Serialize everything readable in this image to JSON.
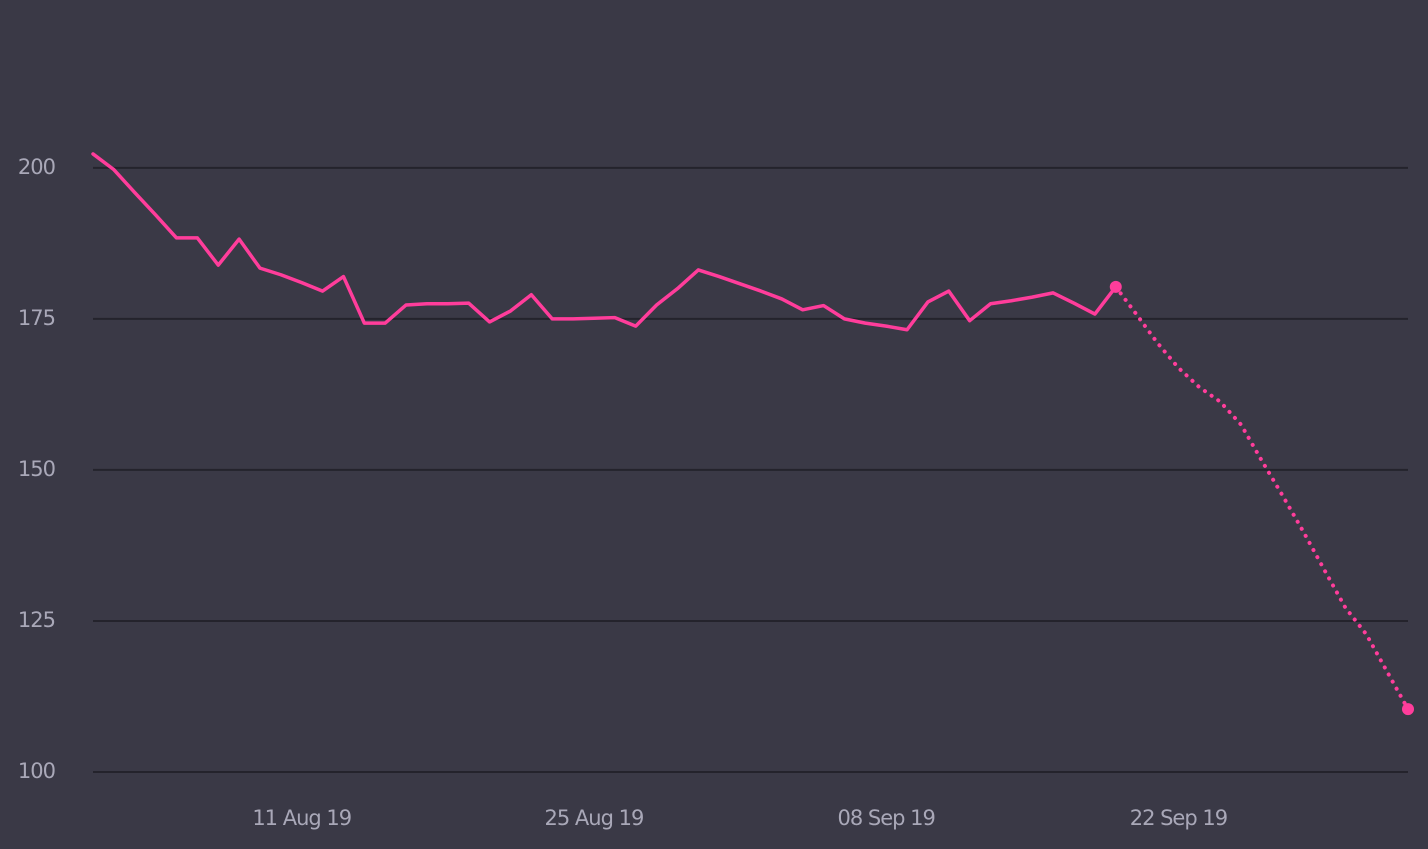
{
  "chart_data": {
    "type": "line",
    "x": [
      "2019-08-01",
      "2019-08-02",
      "2019-08-03",
      "2019-08-04",
      "2019-08-05",
      "2019-08-06",
      "2019-08-07",
      "2019-08-08",
      "2019-08-09",
      "2019-08-10",
      "2019-08-11",
      "2019-08-12",
      "2019-08-13",
      "2019-08-14",
      "2019-08-15",
      "2019-08-16",
      "2019-08-17",
      "2019-08-18",
      "2019-08-19",
      "2019-08-20",
      "2019-08-21",
      "2019-08-22",
      "2019-08-23",
      "2019-08-24",
      "2019-08-25",
      "2019-08-26",
      "2019-08-27",
      "2019-08-28",
      "2019-08-29",
      "2019-08-30",
      "2019-08-31",
      "2019-09-01",
      "2019-09-02",
      "2019-09-03",
      "2019-09-04",
      "2019-09-05",
      "2019-09-06",
      "2019-09-07",
      "2019-09-08",
      "2019-09-09",
      "2019-09-10",
      "2019-09-11",
      "2019-09-12",
      "2019-09-13",
      "2019-09-14",
      "2019-09-15",
      "2019-09-16",
      "2019-09-17",
      "2019-09-18",
      "2019-09-19",
      "2019-09-20",
      "2019-09-21",
      "2019-09-22",
      "2019-09-23",
      "2019-09-24",
      "2019-09-25",
      "2019-09-26",
      "2019-09-27",
      "2019-09-28",
      "2019-09-29",
      "2019-09-30",
      "2019-10-01",
      "2019-10-02",
      "2019-10-03"
    ],
    "series": [
      {
        "color": "#ff3d9b",
        "dotted": false,
        "end_markers": false,
        "values": [
          202.3,
          199.7,
          195.9,
          192.2,
          188.4,
          188.4,
          183.9,
          188.2,
          183.4,
          182.3,
          181.0,
          179.6,
          182.0,
          174.3,
          174.3,
          177.3,
          177.5,
          177.5,
          177.6,
          174.5,
          176.3,
          179.0,
          175.0,
          175.0,
          175.1,
          175.2,
          173.8,
          177.3,
          180.0,
          183.1,
          182.0,
          180.8,
          179.6,
          178.3,
          176.5,
          177.2,
          175.0,
          174.3,
          173.8,
          173.2,
          177.8,
          179.6,
          174.7,
          177.5,
          178.0,
          178.6,
          179.3,
          177.6,
          175.8,
          180.3,
          null,
          null,
          null,
          null,
          null,
          null,
          null,
          null,
          null,
          null,
          null,
          null,
          null,
          null
        ]
      },
      {
        "color": "#ff3d9b",
        "dotted": true,
        "end_markers": true,
        "values": [
          null,
          null,
          null,
          null,
          null,
          null,
          null,
          null,
          null,
          null,
          null,
          null,
          null,
          null,
          null,
          null,
          null,
          null,
          null,
          null,
          null,
          null,
          null,
          null,
          null,
          null,
          null,
          null,
          null,
          null,
          null,
          null,
          null,
          null,
          null,
          null,
          null,
          null,
          null,
          null,
          null,
          null,
          null,
          null,
          null,
          null,
          null,
          null,
          null,
          180.3,
          175.7,
          171.0,
          166.9,
          163.7,
          161.3,
          157.5,
          151.5,
          145.7,
          139.7,
          133.4,
          127.2,
          122.8,
          116.6,
          110.4
        ]
      }
    ],
    "xlim": [
      "2019-08-01",
      "2019-10-03"
    ],
    "xticks": [
      {
        "value": "2019-08-11",
        "label": "11 Aug 19"
      },
      {
        "value": "2019-08-25",
        "label": "25 Aug 19"
      },
      {
        "value": "2019-09-08",
        "label": "08 Sep 19"
      },
      {
        "value": "2019-09-22",
        "label": "22 Sep 19"
      }
    ],
    "ylim": [
      100,
      220
    ],
    "yticks": [
      100,
      125,
      150,
      175,
      200
    ],
    "grid": true
  }
}
